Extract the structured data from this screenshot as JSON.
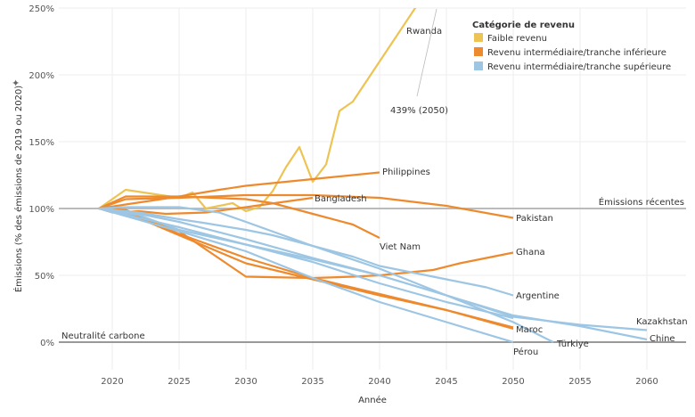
{
  "chart_data": {
    "type": "line",
    "xlabel": "Année",
    "ylabel": "Émissions (% des émissions de 2019 ou 2020)",
    "xlim": [
      2016,
      2063
    ],
    "ylim": [
      -20,
      250
    ],
    "xticks": [
      2020,
      2025,
      2030,
      2035,
      2040,
      2045,
      2050,
      2055,
      2060
    ],
    "yticks": [
      0,
      50,
      100,
      150,
      200,
      250
    ],
    "ytick_labels": [
      "0%",
      "50%",
      "100%",
      "150%",
      "200%",
      "250%"
    ],
    "grid": true,
    "legend": {
      "title": "Catégorie de revenu",
      "position": "top-right",
      "entries": [
        {
          "name": "Faible revenu",
          "color": "#EDC453"
        },
        {
          "name": "Revenu intermédiaire/tranche inférieure",
          "color": "#EE8A2E"
        },
        {
          "name": "Revenu intermédiaire/tranche supérieure",
          "color": "#9CC6E4"
        }
      ]
    },
    "reference_lines": [
      {
        "y": 100,
        "label": "Émissions récentes"
      },
      {
        "y": 0,
        "label": "Neutralité carbone"
      }
    ],
    "annotation": "439% (2050)",
    "series": [
      {
        "name": "Rwanda",
        "category": 0,
        "x": [
          2019,
          2021,
          2023,
          2025,
          2026,
          2027,
          2029,
          2030,
          2031,
          2032,
          2033,
          2034,
          2035,
          2036,
          2037,
          2038,
          2040,
          2041,
          2043,
          2050
        ],
        "y": [
          100,
          114,
          111,
          108,
          112,
          100,
          104,
          98,
          101,
          113,
          131,
          146,
          120,
          133,
          173,
          180,
          210,
          225,
          255,
          439
        ]
      },
      {
        "name": "Philippines",
        "category": 1,
        "x": [
          2019,
          2021,
          2025,
          2028,
          2030,
          2035,
          2040
        ],
        "y": [
          100,
          109,
          109,
          114,
          117,
          122,
          127
        ]
      },
      {
        "name": "Bangladesh",
        "category": 1,
        "x": [
          2019,
          2020,
          2022,
          2023,
          2024,
          2027,
          2030,
          2035
        ],
        "y": [
          100,
          97,
          98,
          97,
          96,
          97,
          101,
          108
        ]
      },
      {
        "name": "Pakistan",
        "category": 1,
        "x": [
          2019,
          2021,
          2025,
          2030,
          2035,
          2040,
          2045,
          2050
        ],
        "y": [
          100,
          107,
          108,
          110,
          110,
          108,
          102,
          93
        ]
      },
      {
        "name": "Viet Nam",
        "category": 1,
        "x": [
          2019,
          2021,
          2025,
          2030,
          2032,
          2035,
          2038,
          2040
        ],
        "y": [
          100,
          103,
          109,
          107,
          104,
          96,
          88,
          78
        ]
      },
      {
        "name": "Ghana",
        "category": 1,
        "x": [
          2019,
          2021,
          2025,
          2030,
          2035,
          2038,
          2040,
          2044,
          2046,
          2050
        ],
        "y": [
          100,
          99,
          83,
          49,
          48,
          49,
          50,
          54,
          59,
          67
        ]
      },
      {
        "name": "Maroc",
        "category": 1,
        "x": [
          2019,
          2021,
          2025,
          2030,
          2035,
          2040,
          2045,
          2050
        ],
        "y": [
          100,
          97,
          80,
          59,
          47,
          35,
          24,
          10
        ]
      },
      {
        "name": "",
        "category": 1,
        "x": [
          2019,
          2021,
          2025,
          2030,
          2035,
          2040,
          2045,
          2050
        ],
        "y": [
          100,
          98,
          81,
          63,
          48,
          36,
          24,
          11
        ]
      },
      {
        "name": "Argentine",
        "category": 2,
        "x": [
          2019,
          2022,
          2025,
          2027,
          2030,
          2032,
          2035,
          2038,
          2040,
          2042,
          2045,
          2048,
          2050
        ],
        "y": [
          100,
          97,
          92,
          89,
          84,
          80,
          72,
          64,
          57,
          53,
          47,
          41,
          35
        ]
      },
      {
        "name": "Kazakhstan",
        "category": 2,
        "x": [
          2019,
          2021,
          2025,
          2028,
          2030,
          2035,
          2040,
          2045,
          2050,
          2055,
          2060
        ],
        "y": [
          100,
          101,
          101,
          97,
          90,
          72,
          55,
          35,
          19,
          13,
          9
        ]
      },
      {
        "name": "Chine",
        "category": 2,
        "x": [
          2019,
          2022,
          2025,
          2030,
          2035,
          2040,
          2045,
          2050,
          2055,
          2060
        ],
        "y": [
          100,
          96,
          90,
          77,
          63,
          50,
          35,
          20,
          12,
          2
        ]
      },
      {
        "name": "Türkiye",
        "category": 2,
        "x": [
          2019,
          2025,
          2030,
          2035,
          2040,
          2045,
          2050,
          2053
        ],
        "y": [
          100,
          86,
          73,
          62,
          50,
          35,
          15,
          0
        ]
      },
      {
        "name": "Pérou",
        "category": 2,
        "x": [
          2019,
          2025,
          2030,
          2035,
          2040,
          2045,
          2050
        ],
        "y": [
          100,
          83,
          68,
          48,
          30,
          15,
          0
        ]
      },
      {
        "name": "",
        "category": 2,
        "x": [
          2019,
          2022,
          2025,
          2030,
          2035,
          2040,
          2045,
          2050
        ],
        "y": [
          100,
          95,
          84,
          73,
          60,
          44,
          30,
          18
        ]
      }
    ]
  }
}
